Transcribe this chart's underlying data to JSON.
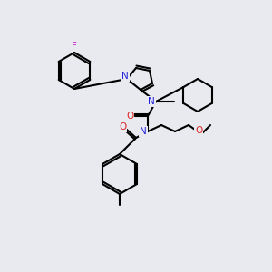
{
  "background_color": "#e8eaf0",
  "atom_colors": {
    "N": "#2222dd",
    "O": "#dd2222",
    "F": "#cc22cc",
    "C": "#000000"
  },
  "figsize": [
    3.0,
    3.0
  ],
  "dpi": 100
}
